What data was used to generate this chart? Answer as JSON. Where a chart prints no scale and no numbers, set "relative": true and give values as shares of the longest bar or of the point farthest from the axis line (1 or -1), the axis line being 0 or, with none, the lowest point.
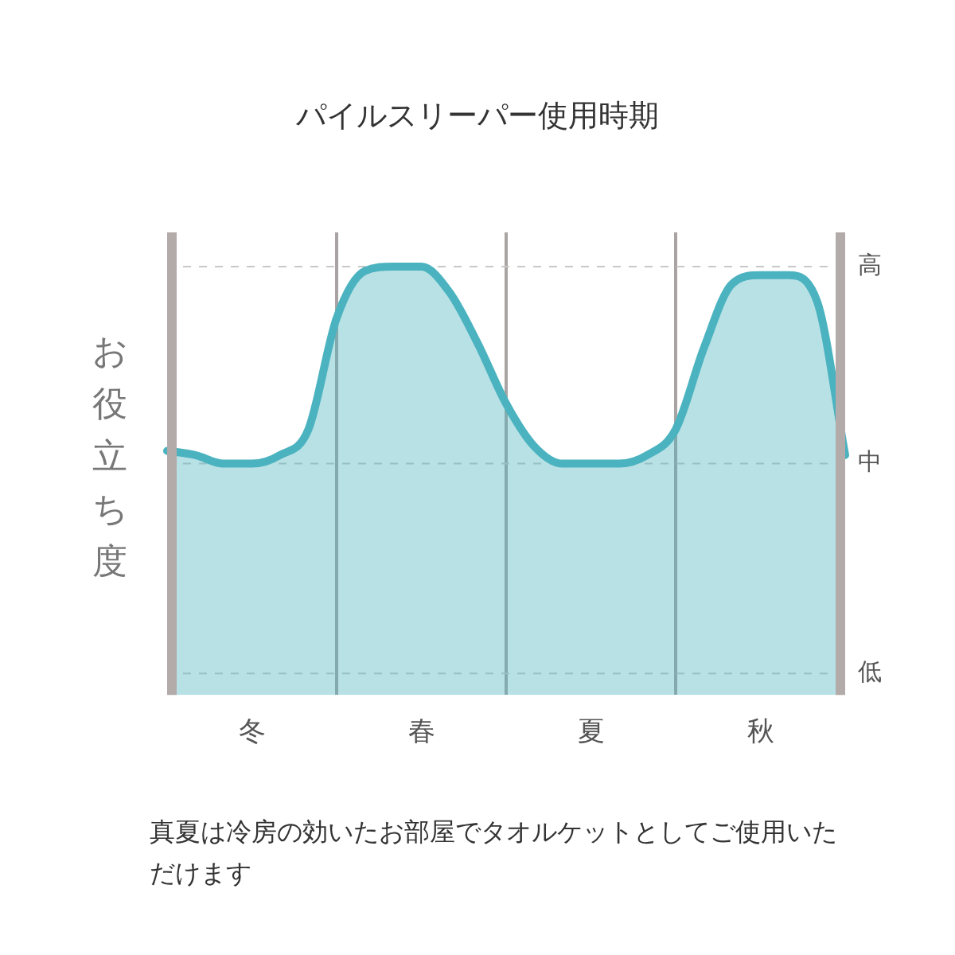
{
  "chart_data": {
    "type": "area",
    "title": "パイルスリーパー使用時期",
    "ylabel": "お役立ち度",
    "relative": true,
    "categories": [
      null,
      null,
      null,
      "冬",
      null,
      null,
      null,
      null,
      null,
      "春",
      null,
      null,
      null,
      null,
      null,
      "夏",
      null,
      null,
      null,
      null,
      null,
      "秋",
      null,
      null,
      null
    ],
    "series": [
      {
        "color": "#4bb3bf",
        "values": [
          0.57,
          0.56,
          0.54,
          0.54,
          0.56,
          0.62,
          0.88,
          0.99,
          1.0,
          1.0,
          0.94,
          0.82,
          0.68,
          0.58,
          0.54,
          0.54,
          0.54,
          0.56,
          0.62,
          0.81,
          0.96,
          0.98,
          0.98,
          0.92,
          0.56
        ]
      }
    ],
    "ref_lines": [
      {
        "axis": "y",
        "value": 1.0,
        "label": "高",
        "color": "#c8c8c8",
        "line_style": "dashed"
      },
      {
        "axis": "y",
        "value": 0.54,
        "label": "中",
        "color": "#c8c8c8",
        "line_style": "dashed"
      },
      {
        "axis": "y",
        "value": 0.05,
        "label": "低",
        "color": "#c8c8c8",
        "line_style": "dashed"
      }
    ],
    "grid": "x",
    "legend": false,
    "marker": "none",
    "line_style": "solid",
    "annotations": [
      "真夏は冷房の効いたお部屋でタオルケットとしてご使用いただけます"
    ]
  }
}
